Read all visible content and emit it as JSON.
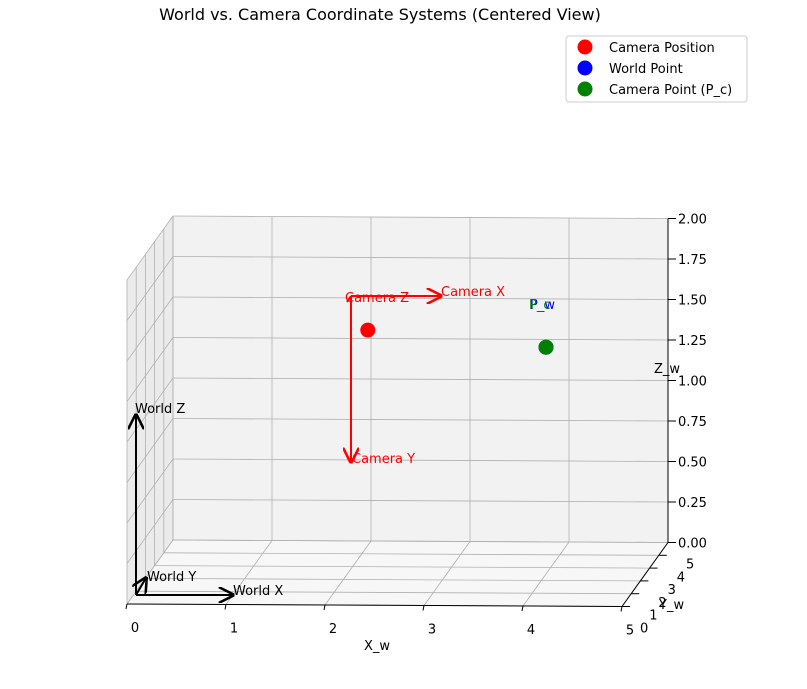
{
  "chart_data": {
    "type": "scatter",
    "projection": "3d",
    "title": "World vs. Camera Coordinate Systems (Centered View)",
    "xlabel": "X_w",
    "ylabel": "Y_w",
    "zlabel": "Z_w",
    "xlim": [
      0,
      5
    ],
    "ylim": [
      0,
      5
    ],
    "zlim": [
      0,
      2
    ],
    "x_ticks": [
      "0",
      "1",
      "2",
      "3",
      "4",
      "5"
    ],
    "y_ticks": [
      "0",
      "1",
      "2",
      "3",
      "4",
      "5"
    ],
    "z_ticks": [
      "0.00",
      "0.25",
      "0.50",
      "0.75",
      "1.00",
      "1.25",
      "1.50",
      "1.75",
      "2.00"
    ],
    "grid": true,
    "legend_position": "top-right",
    "series": [
      {
        "name": "Camera Position",
        "color": "#ff0000",
        "points": [
          [
            2.2,
            2.5,
            1.5
          ]
        ]
      },
      {
        "name": "World Point",
        "color": "#0000ff",
        "points": [
          [
            4.0,
            2.5,
            1.4
          ]
        ]
      },
      {
        "name": "Camera Point (P_c)",
        "color": "#008000",
        "points": [
          [
            4.0,
            2.5,
            1.4
          ]
        ]
      }
    ],
    "annotations": {
      "world_axes": {
        "color": "#000000",
        "labels": [
          "World X",
          "World Y",
          "World Z"
        ]
      },
      "camera_axes": {
        "color": "#ff0000",
        "labels": [
          "Camera X",
          "Camera Y",
          "Camera Z"
        ]
      },
      "point_labels": {
        "world": "P_w",
        "camera": "P_c"
      }
    }
  }
}
